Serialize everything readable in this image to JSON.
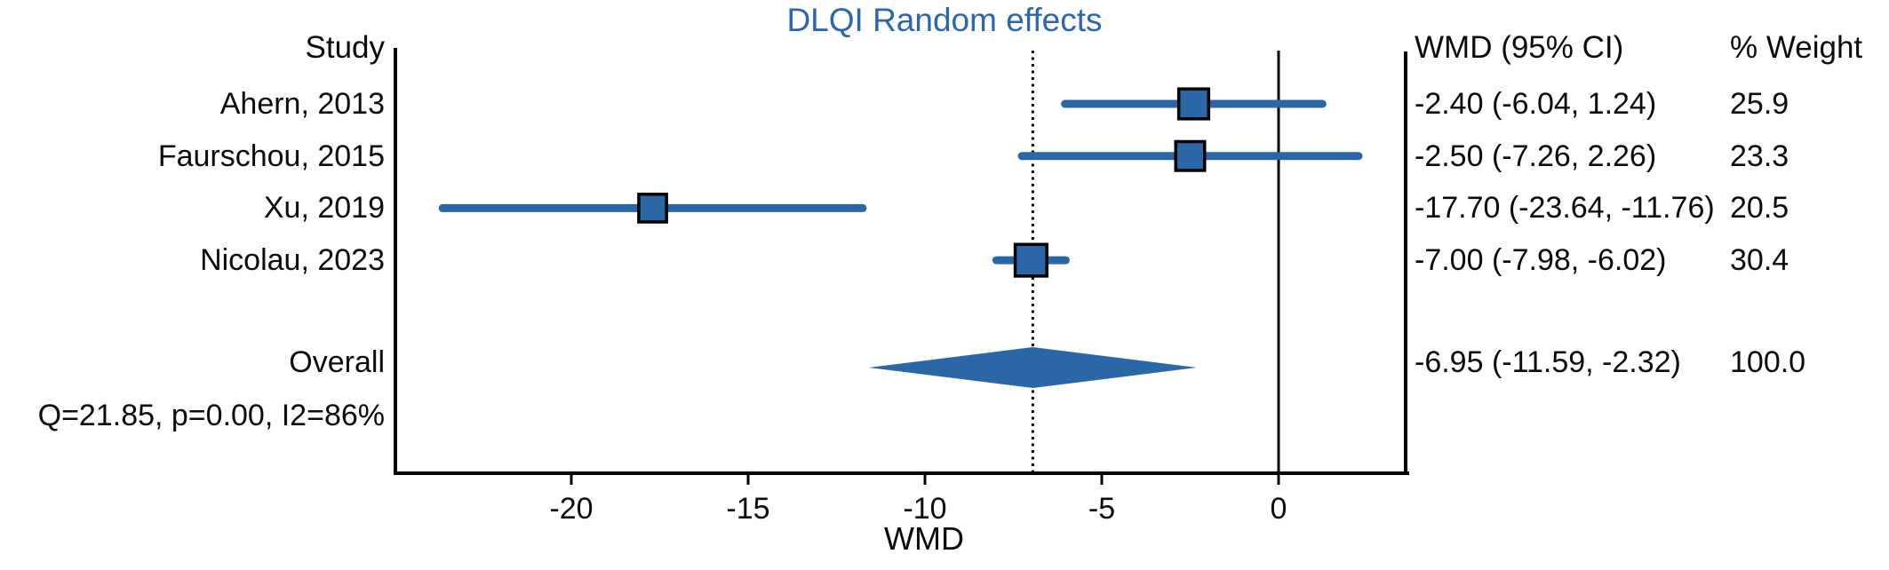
{
  "chart_data": {
    "type": "forest",
    "title": "DLQI Random effects",
    "columns": {
      "study": "Study",
      "wmd_ci": "WMD (95% CI)",
      "weight": "% Weight"
    },
    "studies": [
      {
        "label": "Ahern, 2013",
        "wmd": -2.4,
        "ci_low": -6.04,
        "ci_high": 1.24,
        "weight": 25.9,
        "wmd_ci_text": "-2.40 (-6.04, 1.24)",
        "weight_text": "25.9"
      },
      {
        "label": "Faurschou, 2015",
        "wmd": -2.5,
        "ci_low": -7.26,
        "ci_high": 2.26,
        "weight": 23.3,
        "wmd_ci_text": "-2.50 (-7.26, 2.26)",
        "weight_text": "23.3"
      },
      {
        "label": "Xu, 2019",
        "wmd": -17.7,
        "ci_low": -23.64,
        "ci_high": -11.76,
        "weight": 20.5,
        "wmd_ci_text": "-17.70 (-23.64, -11.76)",
        "weight_text": "20.5"
      },
      {
        "label": "Nicolau, 2023",
        "wmd": -7.0,
        "ci_low": -7.98,
        "ci_high": -6.02,
        "weight": 30.4,
        "wmd_ci_text": "-7.00 (-7.98, -6.02)",
        "weight_text": "30.4"
      }
    ],
    "overall": {
      "label": "Overall",
      "wmd": -6.95,
      "ci_low": -11.59,
      "ci_high": -2.32,
      "weight": 100.0,
      "wmd_ci_text": "-6.95 (-11.59, -2.32)",
      "weight_text": "100.0"
    },
    "heterogeneity": "Q=21.85, p=0.00, I2=86%",
    "xlabel": "WMD",
    "axis": {
      "ticks": [
        -20,
        -15,
        -10,
        -5,
        0
      ],
      "tick_labels": [
        "-20",
        "-15",
        "-10",
        "-5",
        "0"
      ],
      "xmin": -25,
      "xmax": 3.6,
      "null_line": 0,
      "effect_line": -6.95
    },
    "colors": {
      "marker": "#2b66a7",
      "title": "#2b67ad",
      "axis": "#000000",
      "text": "#0c0c0c"
    },
    "legend": "none",
    "grid": "off"
  }
}
